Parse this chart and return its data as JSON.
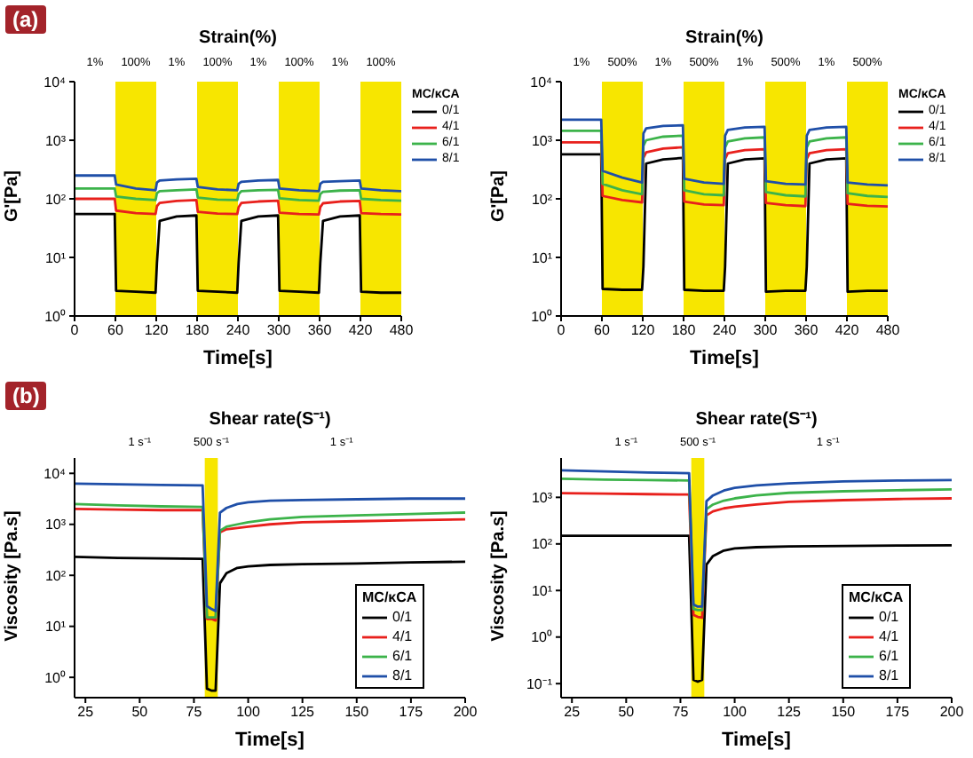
{
  "chart_data": [
    {
      "type": "line",
      "title": "Strain(%)",
      "xlabel": "Time[s]",
      "ylabel": "G'[Pa]",
      "legend_title": "MC/κCA",
      "legend": "right",
      "log": "y",
      "xlim": [
        0,
        480
      ],
      "xticks": [
        0,
        60,
        120,
        180,
        240,
        300,
        360,
        420,
        480
      ],
      "ylim": [
        1,
        10000
      ],
      "yticks": [
        {
          "value": 1,
          "label": "10⁰"
        },
        {
          "value": 10,
          "label": "10¹"
        },
        {
          "value": 100,
          "label": "10²"
        },
        {
          "value": 1000,
          "label": "10³"
        },
        {
          "value": 10000,
          "label": "10⁴"
        }
      ],
      "x": [
        0,
        59,
        61,
        90,
        119,
        121,
        125,
        150,
        179,
        181,
        210,
        239,
        241,
        245,
        270,
        299,
        301,
        330,
        359,
        361,
        365,
        390,
        419,
        421,
        450,
        480
      ],
      "bands": [
        {
          "axis": "x",
          "from": 60,
          "to": 120,
          "label": "100%",
          "color": "#f7e600"
        },
        {
          "axis": "x",
          "from": 180,
          "to": 240,
          "label": "100%",
          "color": "#f7e600"
        },
        {
          "axis": "x",
          "from": 300,
          "to": 360,
          "label": "100%",
          "color": "#f7e600"
        },
        {
          "axis": "x",
          "from": 420,
          "to": 480,
          "label": "100%",
          "color": "#f7e600"
        }
      ],
      "annotations": [
        "(a)",
        "1%",
        "1%",
        "1%",
        "1%"
      ],
      "series": [
        {
          "name": "0/1",
          "color": "#000000",
          "values": [
            55,
            55,
            2.7,
            2.6,
            2.5,
            8,
            42,
            50,
            52,
            2.7,
            2.6,
            2.5,
            8,
            42,
            50,
            52,
            2.7,
            2.6,
            2.5,
            8,
            42,
            50,
            52,
            2.6,
            2.5,
            2.5
          ]
        },
        {
          "name": "4/1",
          "color": "#e8201c",
          "values": [
            100,
            100,
            63,
            57,
            55,
            75,
            85,
            92,
            95,
            60,
            56,
            55,
            72,
            85,
            90,
            93,
            58,
            55,
            54,
            72,
            84,
            90,
            92,
            57,
            55,
            54
          ]
        },
        {
          "name": "6/1",
          "color": "#3cb34a",
          "values": [
            150,
            150,
            110,
            100,
            95,
            125,
            135,
            140,
            145,
            105,
            97,
            95,
            120,
            135,
            140,
            142,
            102,
            95,
            93,
            120,
            132,
            138,
            140,
            100,
            95,
            93
          ]
        },
        {
          "name": "8/1",
          "color": "#1f4fa8",
          "values": [
            250,
            250,
            175,
            150,
            140,
            190,
            205,
            215,
            220,
            160,
            145,
            140,
            180,
            195,
            205,
            210,
            150,
            140,
            135,
            180,
            195,
            200,
            205,
            150,
            140,
            135
          ]
        }
      ]
    },
    {
      "type": "line",
      "title": "Strain(%)",
      "xlabel": "Time[s]",
      "ylabel": "G'[Pa]",
      "legend_title": "MC/κCA",
      "legend": "right",
      "log": "y",
      "xlim": [
        0,
        480
      ],
      "xticks": [
        0,
        60,
        120,
        180,
        240,
        300,
        360,
        420,
        480
      ],
      "ylim": [
        1,
        10000
      ],
      "yticks": [
        {
          "value": 1,
          "label": "10⁰"
        },
        {
          "value": 10,
          "label": "10¹"
        },
        {
          "value": 100,
          "label": "10²"
        },
        {
          "value": 1000,
          "label": "10³"
        },
        {
          "value": 10000,
          "label": "10⁴"
        }
      ],
      "x": [
        0,
        59,
        61,
        90,
        119,
        121,
        125,
        150,
        179,
        181,
        210,
        239,
        241,
        245,
        270,
        299,
        301,
        330,
        359,
        361,
        365,
        390,
        419,
        421,
        450,
        480
      ],
      "bands": [
        {
          "axis": "x",
          "from": 60,
          "to": 120,
          "label": "500%",
          "color": "#f7e600"
        },
        {
          "axis": "x",
          "from": 180,
          "to": 240,
          "label": "500%",
          "color": "#f7e600"
        },
        {
          "axis": "x",
          "from": 300,
          "to": 360,
          "label": "500%",
          "color": "#f7e600"
        },
        {
          "axis": "x",
          "from": 420,
          "to": 480,
          "label": "500%",
          "color": "#f7e600"
        }
      ],
      "annotations": [
        "1%",
        "1%",
        "1%",
        "1%"
      ],
      "series": [
        {
          "name": "0/1",
          "color": "#000000",
          "values": [
            575,
            575,
            2.9,
            2.8,
            2.8,
            7,
            400,
            470,
            500,
            2.8,
            2.7,
            2.7,
            7,
            400,
            470,
            490,
            2.6,
            2.7,
            2.7,
            7,
            400,
            470,
            490,
            2.6,
            2.7,
            2.7
          ]
        },
        {
          "name": "4/1",
          "color": "#e8201c",
          "values": [
            920,
            920,
            112,
            95,
            87,
            500,
            620,
            720,
            760,
            90,
            80,
            78,
            480,
            600,
            680,
            700,
            85,
            78,
            75,
            480,
            600,
            680,
            700,
            82,
            76,
            74
          ]
        },
        {
          "name": "6/1",
          "color": "#3cb34a",
          "values": [
            1450,
            1450,
            180,
            140,
            120,
            800,
            1000,
            1150,
            1200,
            140,
            120,
            115,
            750,
            950,
            1080,
            1120,
            130,
            115,
            110,
            750,
            950,
            1080,
            1120,
            125,
            112,
            108
          ]
        },
        {
          "name": "8/1",
          "color": "#1f4fa8",
          "values": [
            2240,
            2240,
            300,
            230,
            190,
            1300,
            1600,
            1750,
            1800,
            220,
            190,
            180,
            1200,
            1500,
            1650,
            1700,
            200,
            180,
            175,
            1200,
            1500,
            1650,
            1700,
            190,
            175,
            170
          ]
        }
      ]
    },
    {
      "type": "line",
      "title": "Shear rate(S⁻¹)",
      "xlabel": "Time[s]",
      "ylabel": "Viscosity [Pa.s]",
      "legend_title": "MC/κCA",
      "legend": "bottom right",
      "log": "y",
      "xlim": [
        20,
        200
      ],
      "xticks": [
        25,
        50,
        75,
        100,
        125,
        150,
        175,
        200
      ],
      "ylim": [
        0.4,
        20000
      ],
      "yticks": [
        {
          "value": 1,
          "label": "10⁰"
        },
        {
          "value": 10,
          "label": "10¹"
        },
        {
          "value": 100,
          "label": "10²"
        },
        {
          "value": 1000,
          "label": "10³"
        },
        {
          "value": 10000,
          "label": "10⁴"
        }
      ],
      "x": [
        20,
        40,
        60,
        79,
        81,
        83,
        85,
        87,
        90,
        95,
        100,
        110,
        125,
        150,
        175,
        200
      ],
      "bands": [
        {
          "axis": "x",
          "from": 80,
          "to": 86,
          "label": "500 s⁻¹",
          "color": "#f7e600"
        }
      ],
      "annotations": [
        "(b)",
        "1 s⁻¹",
        "1 s⁻¹"
      ],
      "series": [
        {
          "name": "0/1",
          "color": "#000000",
          "values": [
            230,
            220,
            215,
            210,
            0.6,
            0.55,
            0.55,
            70,
            110,
            140,
            150,
            160,
            165,
            170,
            180,
            185
          ]
        },
        {
          "name": "4/1",
          "color": "#e8201c",
          "values": [
            2000,
            1950,
            1900,
            1900,
            14,
            14,
            13,
            700,
            800,
            850,
            900,
            1000,
            1100,
            1150,
            1200,
            1250
          ]
        },
        {
          "name": "6/1",
          "color": "#3cb34a",
          "values": [
            2500,
            2350,
            2250,
            2200,
            15,
            15,
            15,
            750,
            900,
            1000,
            1100,
            1250,
            1400,
            1500,
            1600,
            1700
          ]
        },
        {
          "name": "8/1",
          "color": "#1f4fa8",
          "values": [
            6300,
            6100,
            5900,
            5800,
            25,
            22,
            20,
            1700,
            2100,
            2500,
            2700,
            2900,
            3000,
            3100,
            3200,
            3200
          ]
        }
      ]
    },
    {
      "type": "line",
      "title": "Shear rate(S⁻¹)",
      "xlabel": "Time[s]",
      "ylabel": "Viscosity [Pa.s]",
      "legend_title": "MC/κCA",
      "legend": "bottom right",
      "log": "y",
      "xlim": [
        20,
        200
      ],
      "xticks": [
        25,
        50,
        75,
        100,
        125,
        150,
        175,
        200
      ],
      "ylim": [
        0.05,
        7000
      ],
      "yticks": [
        {
          "value": 0.1,
          "label": "10⁻¹"
        },
        {
          "value": 1,
          "label": "10⁰"
        },
        {
          "value": 10,
          "label": "10¹"
        },
        {
          "value": 100,
          "label": "10²"
        },
        {
          "value": 1000,
          "label": "10³"
        }
      ],
      "x": [
        20,
        40,
        60,
        79,
        81,
        83,
        85,
        87,
        90,
        95,
        100,
        110,
        125,
        150,
        175,
        200
      ],
      "bands": [
        {
          "axis": "x",
          "from": 80,
          "to": 86,
          "label": "500 s⁻¹",
          "color": "#f7e600"
        }
      ],
      "annotations": [
        "1 s⁻¹",
        "1 s⁻¹"
      ],
      "series": [
        {
          "name": "0/1",
          "color": "#000000",
          "values": [
            150,
            150,
            150,
            150,
            0.12,
            0.11,
            0.12,
            36,
            55,
            72,
            80,
            85,
            88,
            90,
            92,
            93
          ]
        },
        {
          "name": "4/1",
          "color": "#e8201c",
          "values": [
            1230,
            1200,
            1170,
            1150,
            3,
            2.7,
            2.6,
            410,
            500,
            580,
            630,
            700,
            800,
            870,
            920,
            950
          ]
        },
        {
          "name": "6/1",
          "color": "#3cb34a",
          "values": [
            2500,
            2400,
            2350,
            2300,
            4,
            3.8,
            3.8,
            560,
            700,
            850,
            950,
            1100,
            1250,
            1350,
            1420,
            1480
          ]
        },
        {
          "name": "8/1",
          "color": "#1f4fa8",
          "values": [
            3800,
            3600,
            3400,
            3300,
            5,
            4.5,
            4.5,
            830,
            1100,
            1400,
            1600,
            1800,
            2000,
            2200,
            2300,
            2350
          ]
        }
      ]
    }
  ]
}
